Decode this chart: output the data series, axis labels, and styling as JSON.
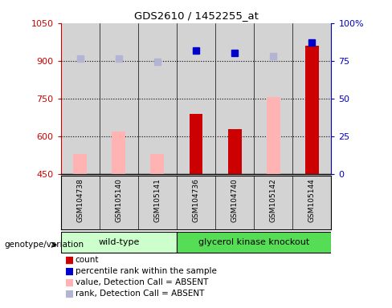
{
  "title": "GDS2610 / 1452255_at",
  "samples": [
    "GSM104738",
    "GSM105140",
    "GSM105141",
    "GSM104736",
    "GSM104740",
    "GSM105142",
    "GSM105144"
  ],
  "ylim_left": [
    450,
    1050
  ],
  "ylim_right": [
    0,
    100
  ],
  "yticks_left": [
    450,
    600,
    750,
    900,
    1050
  ],
  "yticks_right": [
    0,
    25,
    50,
    75,
    100
  ],
  "count_values": [
    null,
    null,
    null,
    690,
    630,
    null,
    960
  ],
  "rank_values": [
    null,
    null,
    null,
    82,
    80,
    null,
    87
  ],
  "absent_value_bars": [
    530,
    620,
    530,
    null,
    null,
    755,
    null
  ],
  "absent_rank_dots": [
    910,
    910,
    895,
    null,
    null,
    920,
    null
  ],
  "color_count": "#cc0000",
  "color_rank": "#0000cc",
  "color_absent_value": "#ffb3b3",
  "color_absent_rank": "#b3b3d4",
  "color_wt_bg": "#ccffcc",
  "color_ko_bg": "#55dd55",
  "color_sample_bg": "#d3d3d3",
  "wt_indices": [
    0,
    1,
    2
  ],
  "ko_indices": [
    3,
    4,
    5,
    6
  ],
  "grid_dotted_at": [
    600,
    750,
    900
  ],
  "legend_items": [
    {
      "label": "count",
      "color": "#cc0000"
    },
    {
      "label": "percentile rank within the sample",
      "color": "#0000cc"
    },
    {
      "label": "value, Detection Call = ABSENT",
      "color": "#ffb3b3"
    },
    {
      "label": "rank, Detection Call = ABSENT",
      "color": "#b3b3d4"
    }
  ]
}
